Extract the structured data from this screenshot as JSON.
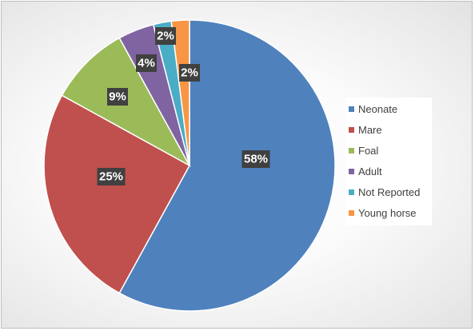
{
  "chart_data": {
    "type": "pie",
    "title": "",
    "legend_position": "right",
    "slices": [
      {
        "label": "Neonate",
        "value": 58,
        "display": "58%",
        "color": "#4f81bd"
      },
      {
        "label": "Mare",
        "value": 25,
        "display": "25%",
        "color": "#c0504d"
      },
      {
        "label": "Foal",
        "value": 9,
        "display": "9%",
        "color": "#9bbb59"
      },
      {
        "label": "Adult",
        "value": 4,
        "display": "4%",
        "color": "#8064a2"
      },
      {
        "label": "Not Reported",
        "value": 2,
        "display": "2%",
        "color": "#4bacc6"
      },
      {
        "label": "Young horse",
        "value": 2,
        "display": "2%",
        "color": "#f79646"
      }
    ]
  }
}
